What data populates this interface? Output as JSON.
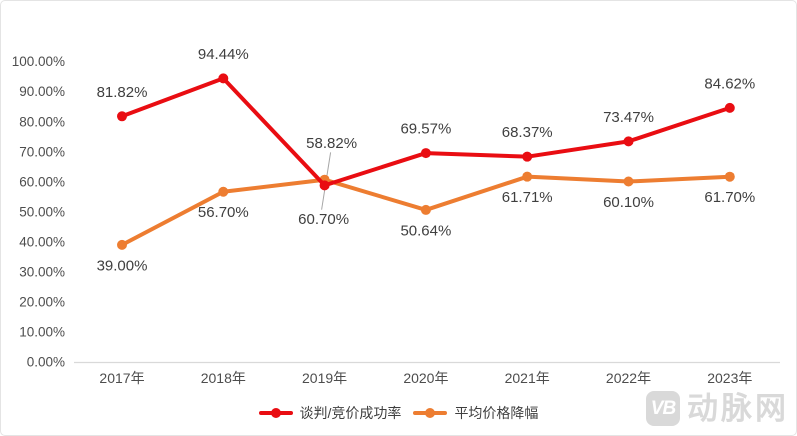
{
  "watermark": {
    "badge": "VB",
    "text": "动脉网",
    "color": "#d9d9d9"
  },
  "chart_data": {
    "type": "line",
    "title": "",
    "xlabel": "",
    "ylabel": "",
    "categories": [
      "2017年",
      "2018年",
      "2019年",
      "2020年",
      "2021年",
      "2022年",
      "2023年"
    ],
    "series": [
      {
        "name": "谈判/竞价成功率",
        "color": "#e90d12",
        "values": [
          81.82,
          94.44,
          58.82,
          69.57,
          68.37,
          73.47,
          84.62
        ],
        "labels": [
          "81.82%",
          "94.44%",
          "58.82%",
          "69.57%",
          "68.37%",
          "73.47%",
          "84.62%"
        ],
        "label_side": "above"
      },
      {
        "name": "平均价格降幅",
        "color": "#ed7d31",
        "values": [
          39.0,
          56.7,
          60.7,
          50.64,
          61.71,
          60.1,
          61.7
        ],
        "labels": [
          "39.00%",
          "56.70%",
          "60.70%",
          "50.64%",
          "61.71%",
          "60.10%",
          "61.70%"
        ],
        "label_side": "below"
      }
    ],
    "ylim": [
      0,
      100
    ],
    "y_ticks": [
      "0.00%",
      "10.00%",
      "20.00%",
      "30.00%",
      "40.00%",
      "50.00%",
      "60.00%",
      "70.00%",
      "80.00%",
      "90.00%",
      "100.00%"
    ],
    "grid": false,
    "legend_position": "bottom",
    "crossover_index": 2,
    "marker": "circle",
    "axis_color": "#d9d9d9",
    "tick_color": "#4d4d4d",
    "data_label_color": "#3f3f3f",
    "leader_line_color": "#a6a6a6"
  }
}
